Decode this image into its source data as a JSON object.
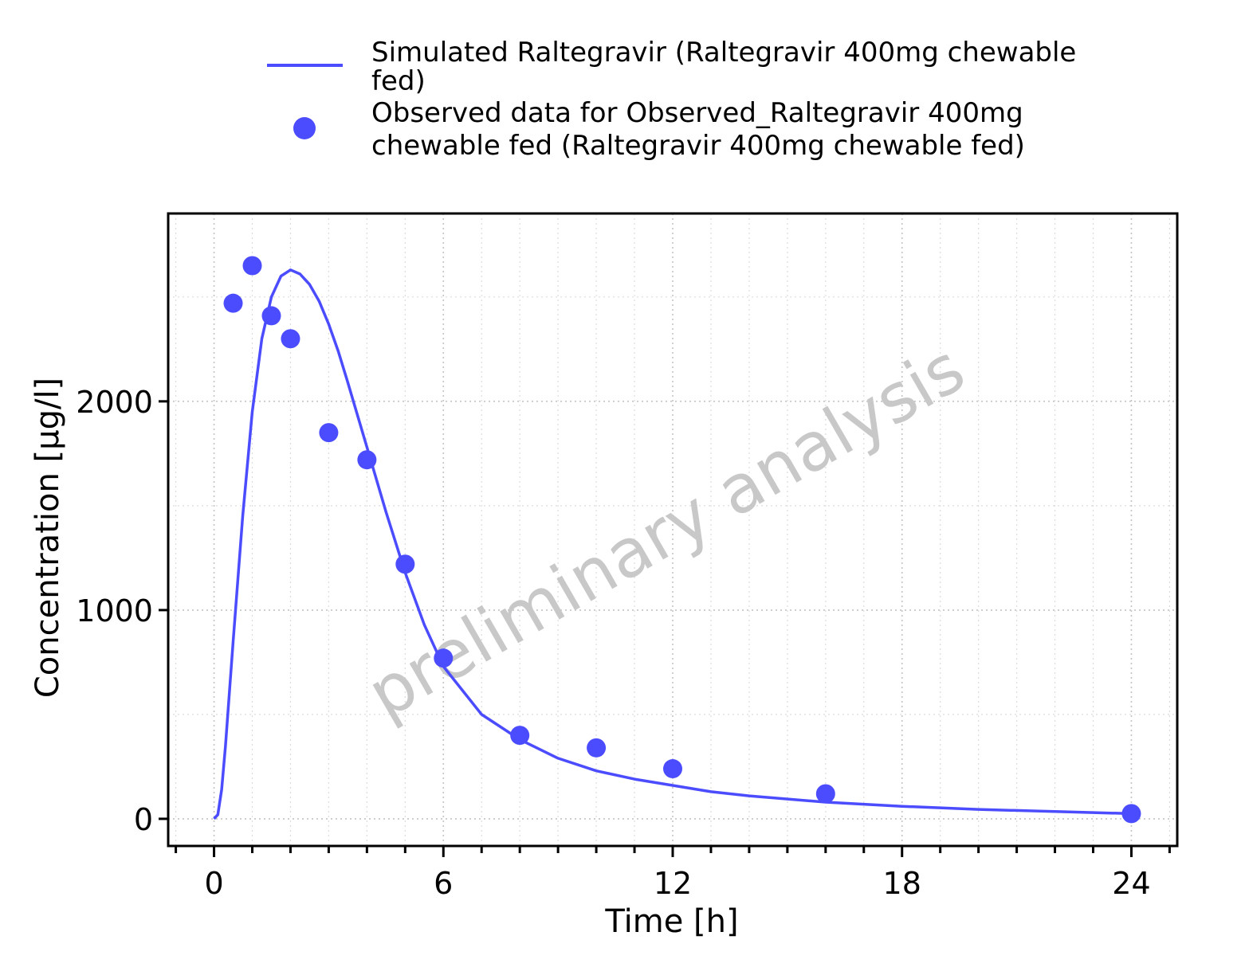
{
  "chart_data": {
    "type": "line",
    "xlabel": "Time [h]",
    "ylabel": "Concentration [µg/l]",
    "xlim": [
      -1.2,
      25.2
    ],
    "ylim": [
      -130,
      2900
    ],
    "x_ticks": [
      0,
      6,
      12,
      18,
      24
    ],
    "y_ticks": [
      0,
      1000,
      2000
    ],
    "x_minor_step": 1,
    "y_minor_step": 500,
    "grid": true,
    "legend_position": "top",
    "watermark": "preliminary analysis",
    "series": [
      {
        "name": "Simulated Raltegravir (Raltegravir 400mg chewable fed)",
        "kind": "line",
        "color": "#4c4cff",
        "x": [
          0,
          0.1,
          0.2,
          0.3,
          0.5,
          0.75,
          1.0,
          1.25,
          1.5,
          1.75,
          2.0,
          2.25,
          2.5,
          2.75,
          3.0,
          3.25,
          3.5,
          4.0,
          4.5,
          5.0,
          5.5,
          6.0,
          7.0,
          8.0,
          9.0,
          10.0,
          11.0,
          12.0,
          13.0,
          14.0,
          16.0,
          18.0,
          20.0,
          22.0,
          24.0
        ],
        "y": [
          0,
          20,
          140,
          350,
          850,
          1450,
          1950,
          2300,
          2500,
          2600,
          2630,
          2610,
          2560,
          2480,
          2370,
          2240,
          2090,
          1780,
          1470,
          1180,
          930,
          730,
          500,
          380,
          290,
          230,
          190,
          160,
          130,
          110,
          80,
          60,
          45,
          35,
          25
        ]
      },
      {
        "name": "Observed data for Observed_Raltegravir 400mg chewable fed (Raltegravir 400mg chewable fed)",
        "kind": "scatter",
        "color": "#4c4cff",
        "x": [
          0.5,
          1.0,
          1.5,
          2.0,
          3.0,
          4.0,
          5.0,
          6.0,
          8.0,
          10.0,
          12.0,
          16.0,
          24.0
        ],
        "y": [
          2470,
          2650,
          2410,
          2300,
          1850,
          1720,
          1220,
          770,
          400,
          340,
          240,
          120,
          25
        ]
      }
    ]
  },
  "legend": {
    "line_label_1": "Simulated Raltegravir (Raltegravir 400mg chewable",
    "line_label_2": "fed)",
    "points_label_1": "Observed data for Observed_Raltegravir 400mg",
    "points_label_2": "chewable fed (Raltegravir 400mg chewable fed)"
  }
}
